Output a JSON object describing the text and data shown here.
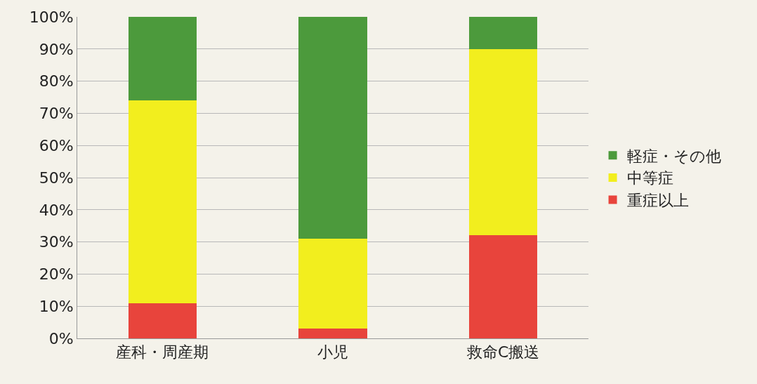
{
  "chart_data": {
    "type": "bar",
    "stacked": true,
    "categories": [
      "産科・周産期",
      "小児",
      "救命C搬送"
    ],
    "series": [
      {
        "name": "重症以上",
        "color": "#e8443c",
        "values": [
          11,
          3,
          32
        ]
      },
      {
        "name": "中等症",
        "color": "#f2ee1e",
        "values": [
          63,
          28,
          58
        ]
      },
      {
        "name": "軽症・その他",
        "color": "#4c9a3c",
        "values": [
          26,
          69,
          10
        ]
      }
    ],
    "ylim": [
      0,
      100
    ],
    "yticks": [
      {
        "value": 0,
        "label": "0%"
      },
      {
        "value": 10,
        "label": "10%"
      },
      {
        "value": 20,
        "label": "20%"
      },
      {
        "value": 30,
        "label": "30%"
      },
      {
        "value": 40,
        "label": "40%"
      },
      {
        "value": 50,
        "label": "50%"
      },
      {
        "value": 60,
        "label": "60%"
      },
      {
        "value": 70,
        "label": "70%"
      },
      {
        "value": 80,
        "label": "80%"
      },
      {
        "value": 90,
        "label": "90%"
      },
      {
        "value": 100,
        "label": "100%"
      }
    ],
    "grid": "y",
    "legend": "right"
  }
}
